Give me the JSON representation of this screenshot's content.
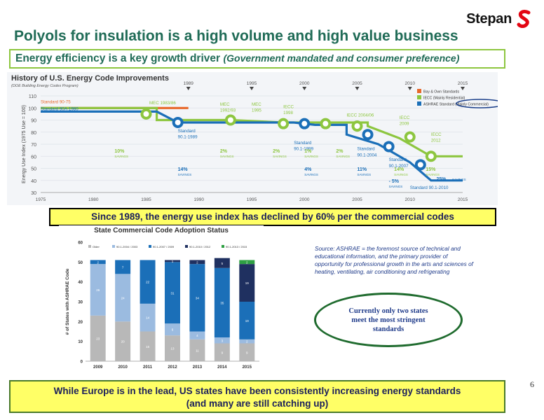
{
  "slide": {
    "logo_text": "Stepan",
    "title": "Polyols for insulation is a high volume and high value business",
    "subtitle_main": "Energy efficiency is a key growth driver",
    "subtitle_paren": "(Government mandated and consumer preference)",
    "highlight_1": "Since 1989, the energy use index has declined by 60% per the commercial codes",
    "source_text": "Source: ASHRAE = the foremost source of technical and educational information, and the primary provider of opportunity for professional growth in the arts and sciences of heating, ventilating, air conditioning and refrigerating",
    "oval_text": "Currently only two states meet the most stringent standards",
    "highlight_2_line1": "While Europe is in the lead, US states have been consistently increasing energy standards",
    "highlight_2_line2": "(and many are still catching up)",
    "page_number": "6",
    "colors": {
      "title_green": "#1f6b56",
      "box_green": "#8dc63f",
      "highlight_yellow": "#ffff66",
      "navy": "#1b1f5c",
      "logo_red": "#e30613"
    }
  },
  "chart_data": [
    {
      "type": "line",
      "title": "History of U.S. Energy Code Improvements",
      "subtitle": "(DOE Building Energy Codes Program)",
      "ylabel": "Energy Use Index (1975 Use = 100)",
      "ylim": [
        30,
        110
      ],
      "y_ticks": [
        "30",
        "40",
        "50",
        "60",
        "70",
        "80",
        "90",
        "100",
        "110"
      ],
      "x_ticks": [
        "1975",
        "1980",
        "1985",
        "1990",
        "1995",
        "2000",
        "2005",
        "2010",
        "2015"
      ],
      "top_x_ticks": [
        "1989",
        "1995",
        "2000",
        "2005",
        "2010",
        "2015"
      ],
      "legend": [
        "Bay & Own Standards",
        "IECC (Mainly Residential)",
        "ASHRAE Standard (Mainly Commercial)"
      ],
      "series": [
        {
          "name": "Bay & Own Standards",
          "color": "#e8682a",
          "points": [
            [
              1975,
              100
            ],
            [
              1989,
              100
            ]
          ]
        },
        {
          "name": "IECC (Mainly Residential)",
          "color": "#8dc63f",
          "points": [
            [
              1975,
              100
            ],
            [
              1986,
              100
            ],
            [
              1986,
              90
            ],
            [
              1990,
              90
            ],
            [
              1993,
              90
            ],
            [
              1998,
              88
            ],
            [
              2001,
              88
            ],
            [
              2006,
              88
            ],
            [
              2006,
              85
            ],
            [
              2009,
              75
            ],
            [
              2012,
              60
            ],
            [
              2015,
              60
            ]
          ]
        },
        {
          "name": "ASHRAE Standard (Mainly Commercial)",
          "color": "#1b6fb8",
          "points": [
            [
              1975,
              97
            ],
            [
              1986,
              97
            ],
            [
              1988,
              88
            ],
            [
              1999,
              88
            ],
            [
              2001,
              86
            ],
            [
              2004,
              86
            ],
            [
              2004,
              78
            ],
            [
              2007,
              70
            ],
            [
              2010,
              55
            ],
            [
              2012,
              40
            ],
            [
              2015,
              40
            ]
          ]
        }
      ],
      "markers": [
        {
          "x": 1985,
          "y": 95,
          "color": "#8dc63f"
        },
        {
          "x": 1988,
          "y": 88,
          "color": "#1b6fb8"
        },
        {
          "x": 1993,
          "y": 90,
          "color": "#8dc63f"
        },
        {
          "x": 1998,
          "y": 87,
          "color": "#8dc63f"
        },
        {
          "x": 2000,
          "y": 87,
          "color": "#1b6fb8"
        },
        {
          "x": 2002,
          "y": 87,
          "color": "#8dc63f"
        },
        {
          "x": 2005,
          "y": 85,
          "color": "#8dc63f"
        },
        {
          "x": 2006,
          "y": 78,
          "color": "#1b6fb8"
        },
        {
          "x": 2008,
          "y": 68,
          "color": "#1b6fb8"
        },
        {
          "x": 2010,
          "y": 76,
          "color": "#8dc63f"
        },
        {
          "x": 2011,
          "y": 53,
          "color": "#1b6fb8"
        },
        {
          "x": 2012,
          "y": 60,
          "color": "#8dc63f"
        }
      ],
      "annotations": [
        {
          "text": "Standard 90-75",
          "x": 1975,
          "y": 104,
          "color": "#e8682a"
        },
        {
          "text": "Standard 90A-1980",
          "x": 1975,
          "y": 98,
          "color": "#1b6fb8"
        },
        {
          "text": "MEC 1983/86",
          "x": 1985.3,
          "y": 103,
          "color": "#8dc63f"
        },
        {
          "text": "MEC",
          "x": 1992,
          "y": 102,
          "color": "#8dc63f"
        },
        {
          "text": "1992/93",
          "x": 1992,
          "y": 97,
          "color": "#8dc63f"
        },
        {
          "text": "MEC",
          "x": 1995,
          "y": 102,
          "color": "#8dc63f"
        },
        {
          "text": "1995",
          "x": 1995,
          "y": 97,
          "color": "#8dc63f"
        },
        {
          "text": "IECC",
          "x": 1998,
          "y": 100,
          "color": "#8dc63f"
        },
        {
          "text": "1998",
          "x": 1998,
          "y": 95,
          "color": "#8dc63f"
        },
        {
          "text": "IECC 2004/06",
          "x": 2004,
          "y": 93,
          "color": "#8dc63f"
        },
        {
          "text": "IECC",
          "x": 2009,
          "y": 91,
          "color": "#8dc63f"
        },
        {
          "text": "2009",
          "x": 2009,
          "y": 86,
          "color": "#8dc63f"
        },
        {
          "text": "IECC",
          "x": 2012,
          "y": 77,
          "color": "#8dc63f"
        },
        {
          "text": "2012",
          "x": 2012,
          "y": 72,
          "color": "#8dc63f"
        },
        {
          "text": "Standard",
          "x": 1988,
          "y": 80,
          "color": "#1b6fb8"
        },
        {
          "text": "90.1-1989",
          "x": 1988,
          "y": 75,
          "color": "#1b6fb8"
        },
        {
          "text": "Standard",
          "x": 1999,
          "y": 70,
          "color": "#1b6fb8"
        },
        {
          "text": "90.1-1999",
          "x": 1999,
          "y": 65,
          "color": "#1b6fb8"
        },
        {
          "text": "Standard",
          "x": 2005,
          "y": 65,
          "color": "#1b6fb8"
        },
        {
          "text": "90.1-2004",
          "x": 2005,
          "y": 60,
          "color": "#1b6fb8"
        },
        {
          "text": "Standard",
          "x": 2008,
          "y": 56,
          "color": "#1b6fb8"
        },
        {
          "text": "90.1-2007",
          "x": 2008,
          "y": 51,
          "color": "#1b6fb8"
        },
        {
          "text": "Standard 90.1-2010",
          "x": 2010,
          "y": 33,
          "color": "#1b6fb8"
        },
        {
          "text": "10%",
          "x": 1982,
          "y": 63,
          "color": "#8dc63f"
        },
        {
          "text": "2%",
          "x": 1992,
          "y": 63,
          "color": "#8dc63f"
        },
        {
          "text": "2%",
          "x": 1997,
          "y": 63,
          "color": "#8dc63f"
        },
        {
          "text": "1%",
          "x": 2000,
          "y": 63,
          "color": "#8dc63f"
        },
        {
          "text": "2%",
          "x": 2003,
          "y": 63,
          "color": "#8dc63f"
        },
        {
          "text": "14%",
          "x": 1988,
          "y": 48,
          "color": "#1b6fb8"
        },
        {
          "text": "4%",
          "x": 2000,
          "y": 48,
          "color": "#1b6fb8"
        },
        {
          "text": "11%",
          "x": 2005,
          "y": 48,
          "color": "#1b6fb8"
        },
        {
          "text": "14%",
          "x": 2008.5,
          "y": 48,
          "color": "#8dc63f"
        },
        {
          "text": "15%",
          "x": 2011.5,
          "y": 48,
          "color": "#8dc63f"
        },
        {
          "text": "- 5%",
          "x": 2008,
          "y": 38,
          "color": "#1b6fb8"
        },
        {
          "text": "25%",
          "x": 2012.5,
          "y": 40,
          "color": "#1b6fb8"
        },
        {
          "text": "SAVINGS",
          "x": 1982,
          "y": 59,
          "color": "#8dc63f"
        },
        {
          "text": "SAVINGS",
          "x": 1992,
          "y": 59,
          "color": "#8dc63f"
        },
        {
          "text": "SAVINGS",
          "x": 1997,
          "y": 59,
          "color": "#8dc63f"
        },
        {
          "text": "SAVINGS",
          "x": 2000,
          "y": 59,
          "color": "#8dc63f"
        },
        {
          "text": "SAVINGS",
          "x": 2003,
          "y": 59,
          "color": "#8dc63f"
        },
        {
          "text": "SAVINGS",
          "x": 1988,
          "y": 44,
          "color": "#1b6fb8"
        },
        {
          "text": "SAVINGS",
          "x": 2000,
          "y": 44,
          "color": "#1b6fb8"
        },
        {
          "text": "SAVINGS",
          "x": 2005,
          "y": 44,
          "color": "#1b6fb8"
        },
        {
          "text": "SAVINGS",
          "x": 2008.5,
          "y": 44,
          "color": "#8dc63f"
        },
        {
          "text": "SAVINGS",
          "x": 2011.5,
          "y": 44,
          "color": "#8dc63f"
        },
        {
          "text": "SAVINGS",
          "x": 2008,
          "y": 34,
          "color": "#1b6fb8"
        },
        {
          "text": "SAVINGS",
          "x": 2014,
          "y": 40,
          "color": "#1b6fb8"
        }
      ]
    },
    {
      "type": "bar",
      "stacked": true,
      "title": "State Commercial Code Adoption Status",
      "ylabel": "# of States with ASHRAE Code",
      "ylim": [
        0,
        60
      ],
      "y_ticks": [
        "0",
        "10",
        "20",
        "30",
        "40",
        "50",
        "60"
      ],
      "categories": [
        "2009",
        "2010",
        "2011",
        "2012",
        "2013",
        "2014",
        "2015"
      ],
      "legend": [
        "Older",
        "90.1-2004 / 2003",
        "90.1-2007 / 2009",
        "90.1-2010 / 2012",
        "90.1-2013 / 2015"
      ],
      "series": [
        {
          "name": "Older",
          "color": "#b8b8b8",
          "values": [
            23,
            20,
            15,
            13,
            11,
            9,
            9
          ]
        },
        {
          "name": "90.1-2004 / 2003",
          "color": "#9bbbe0",
          "values": [
            26,
            24,
            14,
            6,
            4,
            3,
            2
          ]
        },
        {
          "name": "90.1-2007 / 2009",
          "color": "#1b6fb8",
          "values": [
            2,
            7,
            22,
            31,
            34,
            35,
            19
          ]
        },
        {
          "name": "90.1-2010 / 2012",
          "color": "#1f3060",
          "values": [
            0,
            0,
            0,
            1,
            2,
            5,
            19
          ]
        },
        {
          "name": "90.1-2013 / 2015",
          "color": "#2ea043",
          "values": [
            0,
            0,
            0,
            0,
            0,
            0,
            2
          ]
        }
      ]
    }
  ]
}
